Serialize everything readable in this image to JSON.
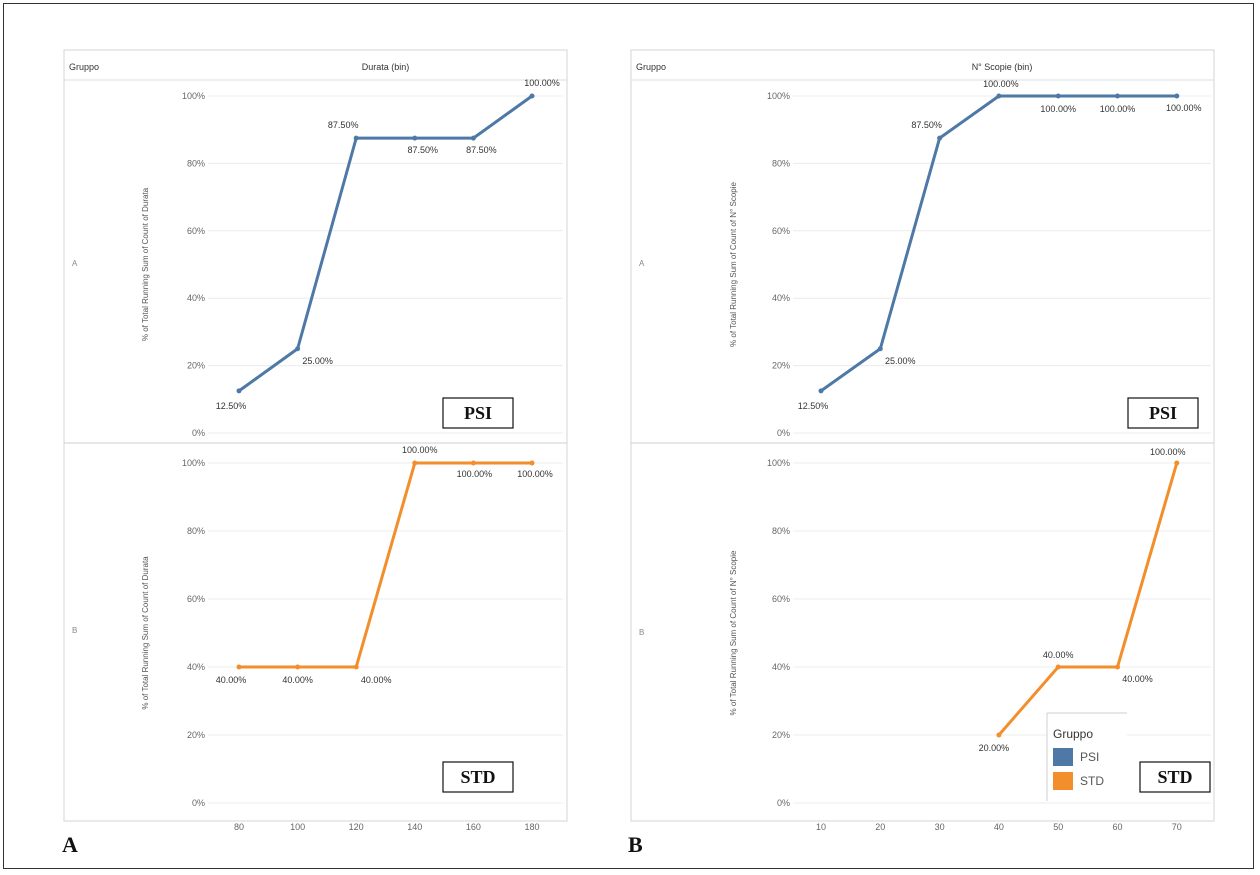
{
  "colors": {
    "PSI": "#4e79a7",
    "STD": "#f28e2b",
    "grid": "#ececec",
    "text": "#666666"
  },
  "legend": {
    "title": "Gruppo",
    "items": [
      "PSI",
      "STD"
    ]
  },
  "panel_letters": [
    "A",
    "B"
  ],
  "chart_data": [
    {
      "type": "line",
      "facet_header": "Gruppo",
      "xlabel": "Durata (bin)",
      "ylabel": "% of Total Running Sum of Count of Durata",
      "x_ticks": [
        "80",
        "100",
        "120",
        "140",
        "160",
        "180"
      ],
      "ylim": [
        0,
        100
      ],
      "y_ticks": [
        "0%",
        "20%",
        "40%",
        "60%",
        "80%",
        "100%"
      ],
      "rows": [
        {
          "row_label": "A",
          "badge": "PSI",
          "series": [
            {
              "name": "PSI",
              "x": [
                "80",
                "100",
                "120",
                "140",
                "160",
                "180"
              ],
              "values": [
                12.5,
                25,
                87.5,
                87.5,
                87.5,
                100
              ],
              "labels": [
                "12.50%",
                "25.00%",
                "87.50%",
                "87.50%",
                "87.50%",
                "100.00%"
              ]
            }
          ]
        },
        {
          "row_label": "B",
          "badge": "STD",
          "series": [
            {
              "name": "STD",
              "x": [
                "80",
                "100",
                "120",
                "140",
                "160",
                "180"
              ],
              "values": [
                40,
                40,
                40,
                100,
                100,
                100
              ],
              "labels": [
                "40.00%",
                "40.00%",
                "40.00%",
                "100.00%",
                "100.00%",
                "100.00%"
              ]
            }
          ]
        }
      ],
      "grid": true
    },
    {
      "type": "line",
      "facet_header": "Gruppo",
      "xlabel": "N° Scopie (bin)",
      "ylabel": "% of Total Running Sum of Count of N° Scopie",
      "x_ticks": [
        "10",
        "20",
        "30",
        "40",
        "50",
        "60",
        "70"
      ],
      "ylim": [
        0,
        100
      ],
      "y_ticks": [
        "0%",
        "20%",
        "40%",
        "60%",
        "80%",
        "100%"
      ],
      "rows": [
        {
          "row_label": "A",
          "badge": "PSI",
          "series": [
            {
              "name": "PSI",
              "x": [
                "10",
                "20",
                "30",
                "40",
                "50",
                "60",
                "70"
              ],
              "values": [
                12.5,
                25,
                87.5,
                100,
                100,
                100,
                100
              ],
              "labels": [
                "12.50%",
                "25.00%",
                "87.50%",
                "100.00%",
                "100.00%",
                "100.00%",
                "100.00%"
              ]
            }
          ]
        },
        {
          "row_label": "B",
          "badge": "STD",
          "series": [
            {
              "name": "STD",
              "x": [
                "40",
                "50",
                "60",
                "70"
              ],
              "values": [
                20,
                40,
                40,
                100
              ],
              "labels": [
                "20.00%",
                "40.00%",
                "40.00%",
                "100.00%"
              ]
            }
          ]
        }
      ],
      "grid": true,
      "legend_position": "bottom-right"
    }
  ]
}
